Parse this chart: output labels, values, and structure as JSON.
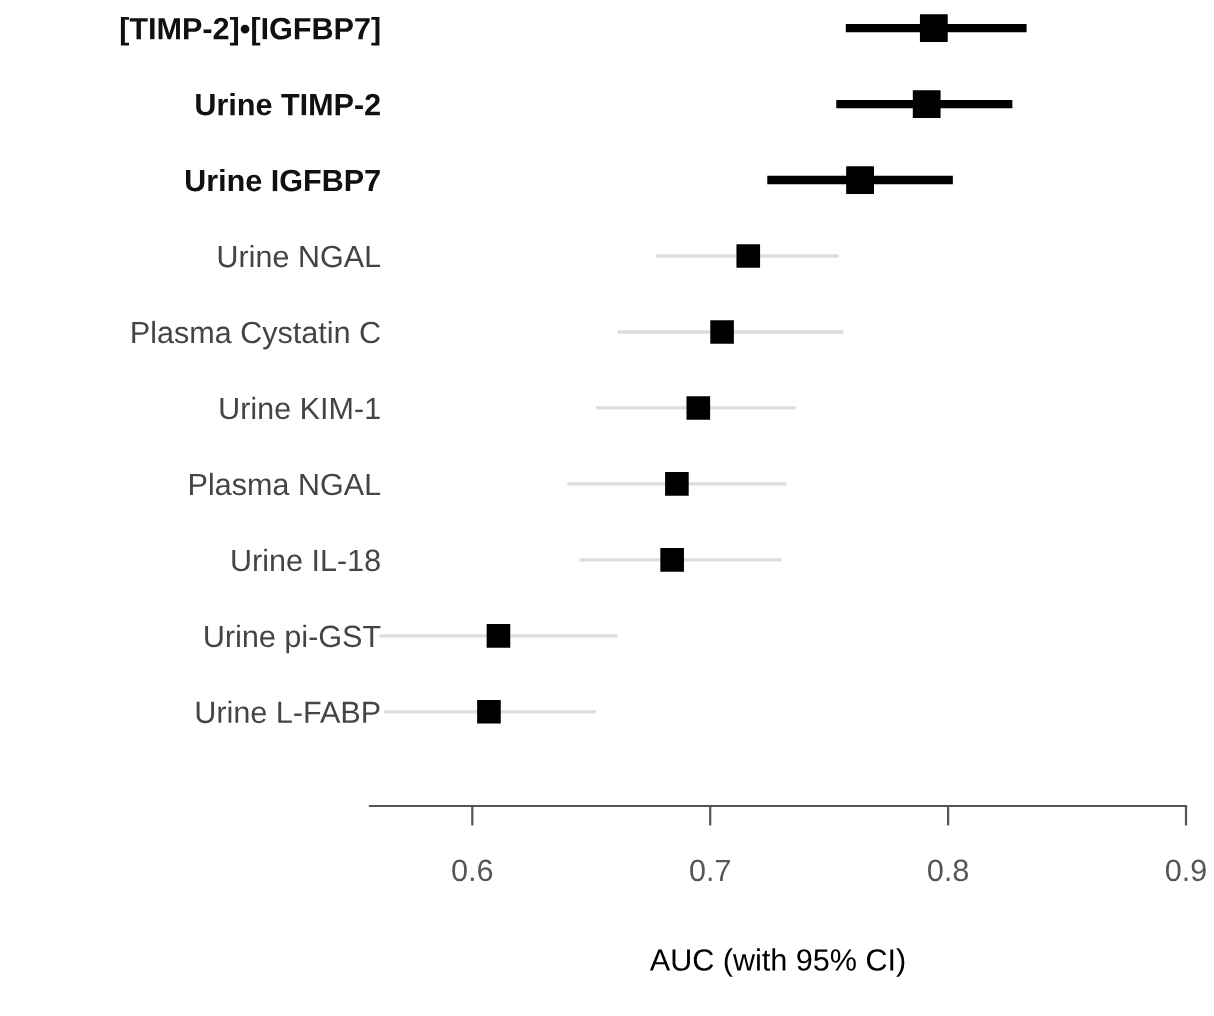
{
  "chart_data": {
    "type": "scatter",
    "xlabel": "AUC (with 95% CI)",
    "categories": [
      "[TIMP-2]•[IGFBP7]",
      "Urine TIMP-2",
      "Urine IGFBP7",
      "Urine NGAL",
      "Plasma Cystatin C",
      "Urine KIM-1",
      "Plasma NGAL",
      "Urine IL-18",
      "Urine pi-GST",
      "Urine L-FABP"
    ],
    "series": [
      {
        "color": "#000000",
        "values": [
          0.794,
          0.791,
          0.763,
          null,
          null,
          null,
          null,
          null,
          null,
          null
        ],
        "errors": [
          [
            0.757,
            0.833
          ],
          [
            0.753,
            0.827
          ],
          [
            0.724,
            0.802
          ],
          null,
          null,
          null,
          null,
          null,
          null,
          null
        ]
      },
      {
        "color": "#000000",
        "values": [
          null,
          null,
          null,
          0.716,
          0.705,
          0.695,
          0.686,
          0.684,
          0.611,
          0.607
        ],
        "errors": [
          null,
          null,
          null,
          [
            0.677,
            0.754
          ],
          [
            0.661,
            0.756
          ],
          [
            0.652,
            0.736
          ],
          [
            0.64,
            0.732
          ],
          [
            0.645,
            0.73
          ],
          [
            0.561,
            0.661
          ],
          [
            0.563,
            0.652
          ]
        ]
      }
    ],
    "orientation": "horizontal",
    "marker": "square",
    "grid": false,
    "xlim": [
      0.557,
      0.9
    ],
    "xticks": [
      0.6,
      0.7,
      0.8,
      0.9
    ]
  }
}
